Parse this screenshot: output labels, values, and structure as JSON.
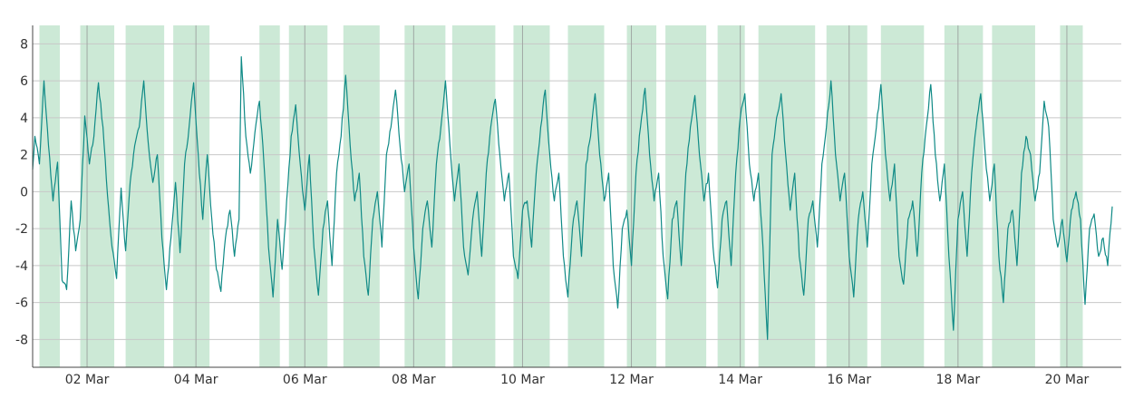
{
  "chart_data": {
    "type": "line",
    "title": "",
    "xlabel": "",
    "ylabel": "",
    "x_start": "2024-03-01",
    "x_end": "2024-03-21",
    "xlim": [
      "2024-03-01",
      "2024-03-21"
    ],
    "ylim": [
      -9.5,
      9.0
    ],
    "grid": true,
    "legend": "none",
    "y_ticks": [
      "8",
      "6",
      "4",
      "2",
      "0",
      "-2",
      "-4",
      "-6",
      "-8"
    ],
    "x_ticks": [
      "02 Mar",
      "04 Mar",
      "06 Mar",
      "08 Mar",
      "10 Mar",
      "12 Mar",
      "14 Mar",
      "16 Mar",
      "18 Mar",
      "20 Mar"
    ],
    "colors": {
      "line": "#0f8a86",
      "band": "#cce9d6",
      "grid": "#c8c8c8",
      "axis": "#444444"
    },
    "shaded_bands": [
      [
        "2024-03-01T03:00",
        "2024-03-01T12:00"
      ],
      [
        "2024-03-01T21:00",
        "2024-03-02T12:00"
      ],
      [
        "2024-03-02T17:00",
        "2024-03-03T10:00"
      ],
      [
        "2024-03-03T14:00",
        "2024-03-04T06:00"
      ],
      [
        "2024-03-05T04:00",
        "2024-03-05T13:00"
      ],
      [
        "2024-03-05T17:00",
        "2024-03-06T10:00"
      ],
      [
        "2024-03-06T17:00",
        "2024-03-07T09:00"
      ],
      [
        "2024-03-07T20:00",
        "2024-03-08T14:00"
      ],
      [
        "2024-03-08T17:00",
        "2024-03-09T12:00"
      ],
      [
        "2024-03-09T20:00",
        "2024-03-10T12:00"
      ],
      [
        "2024-03-10T20:00",
        "2024-03-11T12:00"
      ],
      [
        "2024-03-11T22:00",
        "2024-03-12T11:00"
      ],
      [
        "2024-03-12T15:00",
        "2024-03-13T09:00"
      ],
      [
        "2024-03-13T14:00",
        "2024-03-14T02:00"
      ],
      [
        "2024-03-14T08:00",
        "2024-03-15T09:00"
      ],
      [
        "2024-03-15T14:00",
        "2024-03-16T08:00"
      ],
      [
        "2024-03-16T14:00",
        "2024-03-17T09:00"
      ],
      [
        "2024-03-17T18:00",
        "2024-03-18T11:00"
      ],
      [
        "2024-03-18T15:00",
        "2024-03-19T10:00"
      ],
      [
        "2024-03-19T21:00",
        "2024-03-20T07:00"
      ]
    ],
    "series": [
      {
        "values": [
          [
            "2024-03-01T00:00",
            1.2
          ],
          [
            "2024-03-01T01:00",
            3.0
          ],
          [
            "2024-03-01T03:00",
            1.5
          ],
          [
            "2024-03-01T05:00",
            6.0
          ],
          [
            "2024-03-01T07:00",
            2.5
          ],
          [
            "2024-03-01T09:00",
            -0.5
          ],
          [
            "2024-03-01T11:00",
            1.6
          ],
          [
            "2024-03-01T13:00",
            -4.8
          ],
          [
            "2024-03-01T15:00",
            -5.3
          ],
          [
            "2024-03-01T17:00",
            -0.5
          ],
          [
            "2024-03-01T19:00",
            -3.2
          ],
          [
            "2024-03-01T21:00",
            -1.5
          ],
          [
            "2024-03-01T23:00",
            4.1
          ],
          [
            "2024-03-02T01:00",
            1.5
          ],
          [
            "2024-03-02T03:00",
            3.0
          ],
          [
            "2024-03-02T05:00",
            5.9
          ],
          [
            "2024-03-02T07:00",
            3.5
          ],
          [
            "2024-03-02T09:00",
            -0.2
          ],
          [
            "2024-03-02T11:00",
            -3.0
          ],
          [
            "2024-03-02T13:00",
            -4.7
          ],
          [
            "2024-03-02T15:00",
            0.2
          ],
          [
            "2024-03-02T17:00",
            -3.2
          ],
          [
            "2024-03-02T19:00",
            0.5
          ],
          [
            "2024-03-02T21:00",
            2.5
          ],
          [
            "2024-03-02T23:00",
            3.5
          ],
          [
            "2024-03-03T01:00",
            6.0
          ],
          [
            "2024-03-03T03:00",
            2.6
          ],
          [
            "2024-03-03T05:00",
            0.5
          ],
          [
            "2024-03-03T07:00",
            2.0
          ],
          [
            "2024-03-03T09:00",
            -2.5
          ],
          [
            "2024-03-03T11:00",
            -5.3
          ],
          [
            "2024-03-03T13:00",
            -2.5
          ],
          [
            "2024-03-03T15:00",
            0.5
          ],
          [
            "2024-03-03T17:00",
            -3.3
          ],
          [
            "2024-03-03T19:00",
            1.5
          ],
          [
            "2024-03-03T21:00",
            3.5
          ],
          [
            "2024-03-03T23:00",
            5.9
          ],
          [
            "2024-03-04T01:00",
            2.0
          ],
          [
            "2024-03-04T03:00",
            -1.5
          ],
          [
            "2024-03-04T05:00",
            2.0
          ],
          [
            "2024-03-04T07:00",
            -1.5
          ],
          [
            "2024-03-04T09:00",
            -4.2
          ],
          [
            "2024-03-04T11:00",
            -5.4
          ],
          [
            "2024-03-04T13:00",
            -2.5
          ],
          [
            "2024-03-04T15:00",
            -1.0
          ],
          [
            "2024-03-04T17:00",
            -3.5
          ],
          [
            "2024-03-04T19:00",
            -1.5
          ],
          [
            "2024-03-04T20:00",
            7.3
          ],
          [
            "2024-03-04T22:00",
            3.0
          ],
          [
            "2024-03-05T00:00",
            1.0
          ],
          [
            "2024-03-05T02:00",
            3.2
          ],
          [
            "2024-03-05T04:00",
            4.9
          ],
          [
            "2024-03-05T06:00",
            1.5
          ],
          [
            "2024-03-05T08:00",
            -3.0
          ],
          [
            "2024-03-05T10:00",
            -5.7
          ],
          [
            "2024-03-05T12:00",
            -1.5
          ],
          [
            "2024-03-05T14:00",
            -4.2
          ],
          [
            "2024-03-05T16:00",
            -0.5
          ],
          [
            "2024-03-05T18:00",
            3.0
          ],
          [
            "2024-03-05T20:00",
            4.7
          ],
          [
            "2024-03-05T22:00",
            1.5
          ],
          [
            "2024-03-06T00:00",
            -1.0
          ],
          [
            "2024-03-06T02:00",
            2.0
          ],
          [
            "2024-03-06T04:00",
            -3.0
          ],
          [
            "2024-03-06T06:00",
            -5.6
          ],
          [
            "2024-03-06T08:00",
            -2.0
          ],
          [
            "2024-03-06T10:00",
            -0.5
          ],
          [
            "2024-03-06T12:00",
            -4.0
          ],
          [
            "2024-03-06T14:00",
            1.0
          ],
          [
            "2024-03-06T16:00",
            3.0
          ],
          [
            "2024-03-06T18:00",
            6.3
          ],
          [
            "2024-03-06T20:00",
            2.5
          ],
          [
            "2024-03-06T22:00",
            -0.5
          ],
          [
            "2024-03-07T00:00",
            1.0
          ],
          [
            "2024-03-07T02:00",
            -3.5
          ],
          [
            "2024-03-07T04:00",
            -5.6
          ],
          [
            "2024-03-07T06:00",
            -1.5
          ],
          [
            "2024-03-07T08:00",
            0.0
          ],
          [
            "2024-03-07T10:00",
            -3.0
          ],
          [
            "2024-03-07T12:00",
            2.0
          ],
          [
            "2024-03-07T14:00",
            3.5
          ],
          [
            "2024-03-07T16:00",
            5.5
          ],
          [
            "2024-03-07T18:00",
            2.5
          ],
          [
            "2024-03-07T20:00",
            0.0
          ],
          [
            "2024-03-07T22:00",
            1.5
          ],
          [
            "2024-03-08T00:00",
            -3.0
          ],
          [
            "2024-03-08T02:00",
            -5.8
          ],
          [
            "2024-03-08T04:00",
            -2.0
          ],
          [
            "2024-03-08T06:00",
            -0.5
          ],
          [
            "2024-03-08T08:00",
            -3.0
          ],
          [
            "2024-03-08T10:00",
            1.5
          ],
          [
            "2024-03-08T12:00",
            3.5
          ],
          [
            "2024-03-08T14:00",
            6.0
          ],
          [
            "2024-03-08T16:00",
            2.5
          ],
          [
            "2024-03-08T18:00",
            -0.5
          ],
          [
            "2024-03-08T20:00",
            1.5
          ],
          [
            "2024-03-08T22:00",
            -3.0
          ],
          [
            "2024-03-09T00:00",
            -4.5
          ],
          [
            "2024-03-09T02:00",
            -1.5
          ],
          [
            "2024-03-09T04:00",
            0.0
          ],
          [
            "2024-03-09T06:00",
            -3.5
          ],
          [
            "2024-03-09T08:00",
            1.0
          ],
          [
            "2024-03-09T10:00",
            3.5
          ],
          [
            "2024-03-09T12:00",
            5.0
          ],
          [
            "2024-03-09T14:00",
            2.0
          ],
          [
            "2024-03-09T16:00",
            -0.5
          ],
          [
            "2024-03-09T18:00",
            1.0
          ],
          [
            "2024-03-09T20:00",
            -3.5
          ],
          [
            "2024-03-09T22:00",
            -4.7
          ],
          [
            "2024-03-10T00:00",
            -1.0
          ],
          [
            "2024-03-10T02:00",
            -0.5
          ],
          [
            "2024-03-10T04:00",
            -3.0
          ],
          [
            "2024-03-10T06:00",
            1.0
          ],
          [
            "2024-03-10T08:00",
            3.5
          ],
          [
            "2024-03-10T10:00",
            5.5
          ],
          [
            "2024-03-10T12:00",
            2.0
          ],
          [
            "2024-03-10T14:00",
            -0.5
          ],
          [
            "2024-03-10T16:00",
            1.0
          ],
          [
            "2024-03-10T18:00",
            -3.5
          ],
          [
            "2024-03-10T20:00",
            -5.7
          ],
          [
            "2024-03-10T22:00",
            -2.0
          ],
          [
            "2024-03-11T00:00",
            -0.5
          ],
          [
            "2024-03-11T02:00",
            -3.5
          ],
          [
            "2024-03-11T04:00",
            1.5
          ],
          [
            "2024-03-11T06:00",
            3.0
          ],
          [
            "2024-03-11T08:00",
            5.3
          ],
          [
            "2024-03-11T10:00",
            2.0
          ],
          [
            "2024-03-11T12:00",
            -0.5
          ],
          [
            "2024-03-11T14:00",
            1.0
          ],
          [
            "2024-03-11T16:00",
            -4.0
          ],
          [
            "2024-03-11T18:00",
            -6.3
          ],
          [
            "2024-03-11T20:00",
            -2.0
          ],
          [
            "2024-03-11T22:00",
            -1.0
          ],
          [
            "2024-03-12T00:00",
            -4.0
          ],
          [
            "2024-03-12T02:00",
            1.0
          ],
          [
            "2024-03-12T04:00",
            3.5
          ],
          [
            "2024-03-12T06:00",
            5.6
          ],
          [
            "2024-03-12T08:00",
            2.0
          ],
          [
            "2024-03-12T10:00",
            -0.5
          ],
          [
            "2024-03-12T12:00",
            1.0
          ],
          [
            "2024-03-12T14:00",
            -3.5
          ],
          [
            "2024-03-12T16:00",
            -5.8
          ],
          [
            "2024-03-12T18:00",
            -1.5
          ],
          [
            "2024-03-12T20:00",
            -0.5
          ],
          [
            "2024-03-12T22:00",
            -4.0
          ],
          [
            "2024-03-13T00:00",
            1.0
          ],
          [
            "2024-03-13T02:00",
            3.5
          ],
          [
            "2024-03-13T04:00",
            5.2
          ],
          [
            "2024-03-13T06:00",
            2.0
          ],
          [
            "2024-03-13T08:00",
            -0.5
          ],
          [
            "2024-03-13T10:00",
            1.0
          ],
          [
            "2024-03-13T12:00",
            -3.0
          ],
          [
            "2024-03-13T14:00",
            -5.2
          ],
          [
            "2024-03-13T16:00",
            -1.5
          ],
          [
            "2024-03-13T18:00",
            -0.5
          ],
          [
            "2024-03-13T20:00",
            -4.0
          ],
          [
            "2024-03-13T22:00",
            1.0
          ],
          [
            "2024-03-14T00:00",
            4.0
          ],
          [
            "2024-03-14T02:00",
            5.3
          ],
          [
            "2024-03-14T04:00",
            1.5
          ],
          [
            "2024-03-14T06:00",
            -0.5
          ],
          [
            "2024-03-14T08:00",
            1.0
          ],
          [
            "2024-03-14T10:00",
            -3.0
          ],
          [
            "2024-03-14T12:00",
            -8.0
          ],
          [
            "2024-03-14T14:00",
            2.0
          ],
          [
            "2024-03-14T16:00",
            4.0
          ],
          [
            "2024-03-14T18:00",
            5.3
          ],
          [
            "2024-03-14T20:00",
            2.0
          ],
          [
            "2024-03-14T22:00",
            -1.0
          ],
          [
            "2024-03-15T00:00",
            1.0
          ],
          [
            "2024-03-15T02:00",
            -3.5
          ],
          [
            "2024-03-15T04:00",
            -5.6
          ],
          [
            "2024-03-15T06:00",
            -1.5
          ],
          [
            "2024-03-15T08:00",
            -0.5
          ],
          [
            "2024-03-15T10:00",
            -3.0
          ],
          [
            "2024-03-15T12:00",
            1.5
          ],
          [
            "2024-03-15T14:00",
            3.5
          ],
          [
            "2024-03-15T16:00",
            6.0
          ],
          [
            "2024-03-15T18:00",
            2.0
          ],
          [
            "2024-03-15T20:00",
            -0.5
          ],
          [
            "2024-03-15T22:00",
            1.0
          ],
          [
            "2024-03-16T00:00",
            -3.5
          ],
          [
            "2024-03-16T02:00",
            -5.7
          ],
          [
            "2024-03-16T04:00",
            -1.5
          ],
          [
            "2024-03-16T06:00",
            0.0
          ],
          [
            "2024-03-16T08:00",
            -3.0
          ],
          [
            "2024-03-16T10:00",
            1.5
          ],
          [
            "2024-03-16T12:00",
            3.5
          ],
          [
            "2024-03-16T14:00",
            5.8
          ],
          [
            "2024-03-16T16:00",
            2.0
          ],
          [
            "2024-03-16T18:00",
            -0.5
          ],
          [
            "2024-03-16T20:00",
            1.5
          ],
          [
            "2024-03-16T22:00",
            -3.5
          ],
          [
            "2024-03-17T00:00",
            -5.0
          ],
          [
            "2024-03-17T02:00",
            -1.5
          ],
          [
            "2024-03-17T04:00",
            -0.5
          ],
          [
            "2024-03-17T06:00",
            -3.5
          ],
          [
            "2024-03-17T08:00",
            1.0
          ],
          [
            "2024-03-17T10:00",
            3.5
          ],
          [
            "2024-03-17T12:00",
            5.8
          ],
          [
            "2024-03-17T14:00",
            2.0
          ],
          [
            "2024-03-17T16:00",
            -0.5
          ],
          [
            "2024-03-17T18:00",
            1.5
          ],
          [
            "2024-03-17T20:00",
            -3.5
          ],
          [
            "2024-03-17T22:00",
            -7.5
          ],
          [
            "2024-03-18T00:00",
            -1.5
          ],
          [
            "2024-03-18T02:00",
            0.0
          ],
          [
            "2024-03-18T04:00",
            -3.5
          ],
          [
            "2024-03-18T06:00",
            1.0
          ],
          [
            "2024-03-18T08:00",
            3.5
          ],
          [
            "2024-03-18T10:00",
            5.3
          ],
          [
            "2024-03-18T12:00",
            2.0
          ],
          [
            "2024-03-18T14:00",
            -0.5
          ],
          [
            "2024-03-18T16:00",
            1.5
          ],
          [
            "2024-03-18T18:00",
            -3.5
          ],
          [
            "2024-03-18T20:00",
            -6.0
          ],
          [
            "2024-03-18T22:00",
            -2.0
          ],
          [
            "2024-03-19T00:00",
            -1.0
          ],
          [
            "2024-03-19T02:00",
            -4.0
          ],
          [
            "2024-03-19T04:00",
            1.0
          ],
          [
            "2024-03-19T06:00",
            3.0
          ],
          [
            "2024-03-19T08:00",
            2.0
          ],
          [
            "2024-03-19T10:00",
            -0.5
          ],
          [
            "2024-03-19T12:00",
            1.0
          ],
          [
            "2024-03-19T14:00",
            4.9
          ],
          [
            "2024-03-19T16:00",
            3.5
          ],
          [
            "2024-03-19T18:00",
            -1.5
          ],
          [
            "2024-03-19T20:00",
            -3.0
          ],
          [
            "2024-03-19T22:00",
            -1.5
          ],
          [
            "2024-03-20T00:00",
            -3.8
          ],
          [
            "2024-03-20T02:00",
            -1.0
          ],
          [
            "2024-03-20T04:00",
            0.0
          ],
          [
            "2024-03-20T06:00",
            -1.5
          ],
          [
            "2024-03-20T08:00",
            -6.1
          ],
          [
            "2024-03-20T10:00",
            -2.0
          ],
          [
            "2024-03-20T12:00",
            -1.2
          ],
          [
            "2024-03-20T14:00",
            -3.5
          ],
          [
            "2024-03-20T16:00",
            -2.5
          ],
          [
            "2024-03-20T18:00",
            -4.0
          ],
          [
            "2024-03-20T20:00",
            -0.8
          ]
        ]
      }
    ]
  }
}
